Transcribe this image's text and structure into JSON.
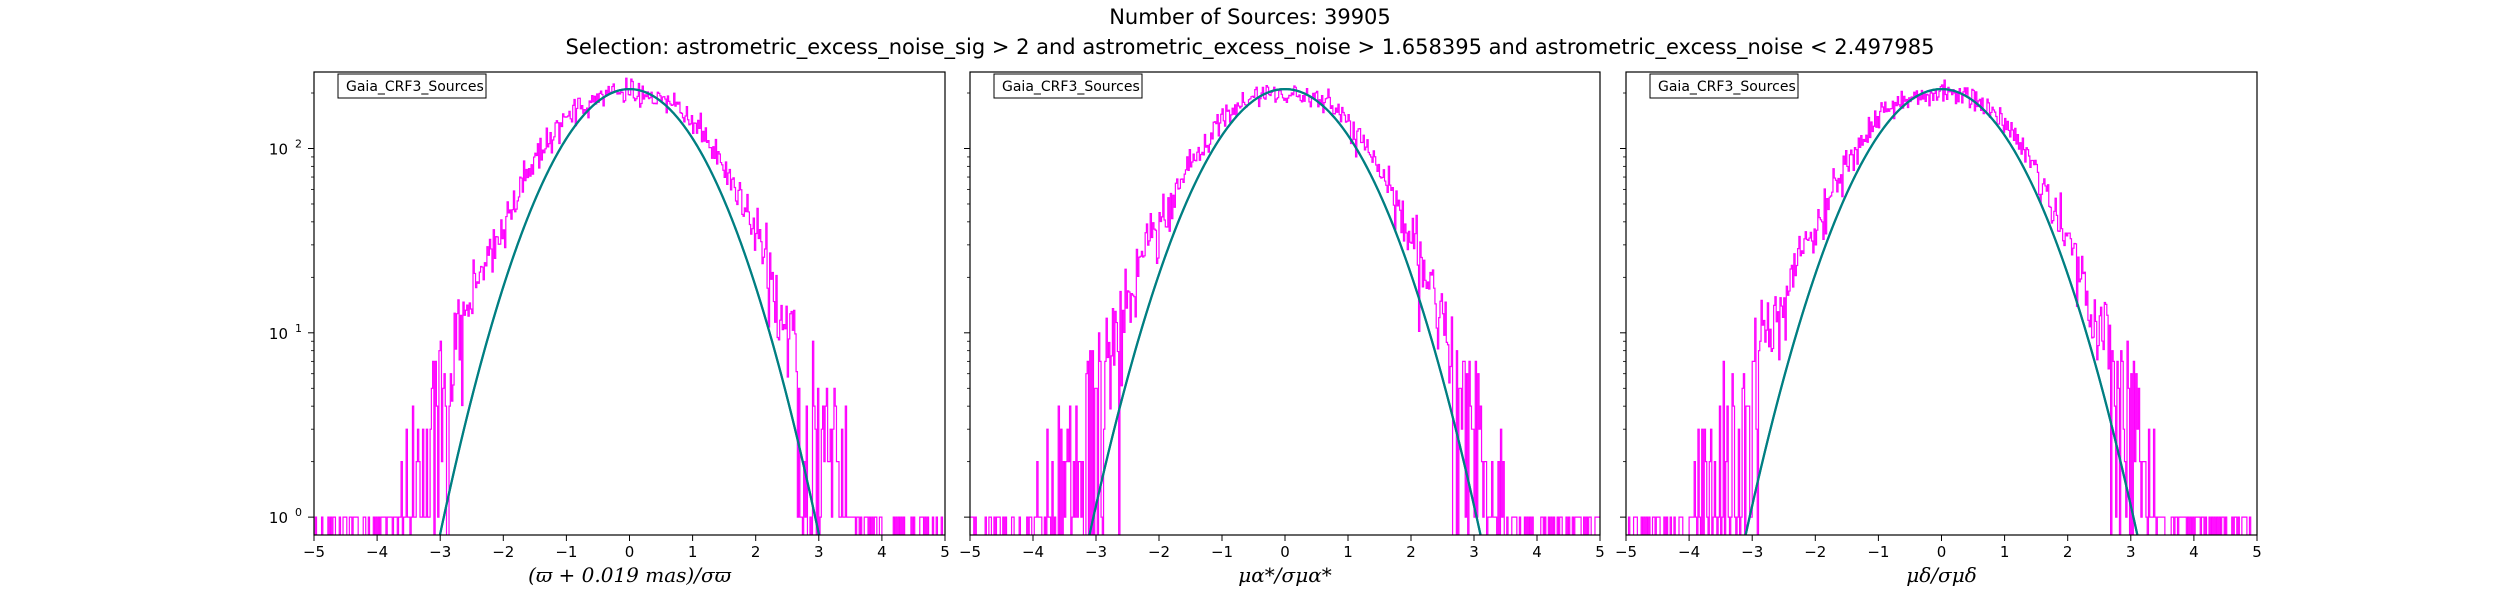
{
  "figure": {
    "title_line1": "Number of Sources: 39905",
    "title_line2": "Selection: astrometric_excess_noise_sig > 2 and astrometric_excess_noise > 1.658395 and astrometric_excess_noise < 2.497985"
  },
  "colors": {
    "histogram": "#ff00ff",
    "fit_curve_1": "#1f77b4",
    "fit_curve_2": "#008080",
    "axes": "#000000"
  },
  "chart_data": [
    {
      "type": "line",
      "title": "",
      "legend": "Gaia_CRF3_Sources",
      "legend_placement": "top-left",
      "xlabel": "(ϖ + 0.019 mas)/σϖ",
      "ylabel": "",
      "xlim": [
        -5,
        5
      ],
      "ylim": [
        0.8,
        260
      ],
      "yscale": "log",
      "grid": false,
      "x_tick_labels": [
        "−5",
        "−4",
        "−3",
        "−2",
        "−1",
        "0",
        "1",
        "2",
        "3",
        "4",
        "5"
      ],
      "y_tick_labels": [
        {
          "value": 1,
          "base": "10",
          "exp": "0"
        },
        {
          "value": 10,
          "base": "10",
          "exp": "1"
        },
        {
          "value": 100,
          "base": "10",
          "exp": "2"
        }
      ],
      "series": [
        {
          "kind": "histogram",
          "bin_width": 0.02,
          "x": [
            -5,
            -4.5,
            -4,
            -3.75,
            -3.5,
            -3.25,
            -3,
            -2.75,
            -2.5,
            -2.25,
            -2,
            -1.75,
            -1.5,
            -1.25,
            -1,
            -0.75,
            -0.5,
            -0.25,
            0,
            0.25,
            0.5,
            0.75,
            1,
            1.25,
            1.5,
            1.75,
            2,
            2.25,
            2.5,
            2.75,
            3,
            3.25,
            3.5,
            3.75,
            4,
            4.5,
            5
          ],
          "values": [
            1,
            1,
            1,
            1,
            2,
            2,
            5,
            9,
            16,
            25,
            38,
            56,
            82,
            112,
            145,
            172,
            190,
            200,
            205,
            198,
            188,
            168,
            140,
            108,
            78,
            52,
            34,
            20,
            11,
            6,
            3,
            2,
            1,
            1,
            1,
            1,
            1
          ]
        },
        {
          "kind": "gaussian_fit",
          "amplitude": 210,
          "mean": 0,
          "sigma": 0.9,
          "x_range": [
            -3.6,
            3.6
          ]
        }
      ]
    },
    {
      "type": "line",
      "title": "",
      "legend": "Gaia_CRF3_Sources",
      "legend_placement": "top-left",
      "xlabel": "μα*/σμα*",
      "ylabel": "",
      "xlim": [
        -5,
        5
      ],
      "ylim": [
        0.8,
        260
      ],
      "yscale": "log",
      "grid": false,
      "x_tick_labels": [
        "−5",
        "−4",
        "−3",
        "−2",
        "−1",
        "0",
        "1",
        "2",
        "3",
        "4",
        "5"
      ],
      "y_tick_labels": [],
      "series": [
        {
          "kind": "histogram",
          "bin_width": 0.02,
          "x": [
            -4.8,
            -4.5,
            -4,
            -3.75,
            -3.5,
            -3.25,
            -3,
            -2.75,
            -2.5,
            -2.25,
            -2,
            -1.75,
            -1.5,
            -1.25,
            -1,
            -0.75,
            -0.5,
            -0.25,
            0,
            0.25,
            0.5,
            0.75,
            1,
            1.25,
            1.5,
            1.75,
            2,
            2.25,
            2.5,
            2.75,
            3,
            3.25,
            3.5,
            3.75,
            4,
            4.5,
            4.8
          ],
          "values": [
            1,
            1,
            1,
            2,
            2,
            3,
            5,
            9,
            15,
            24,
            36,
            54,
            80,
            110,
            142,
            170,
            188,
            198,
            200,
            196,
            186,
            166,
            138,
            106,
            76,
            50,
            32,
            19,
            11,
            6,
            4,
            2,
            1,
            1,
            1,
            1,
            1
          ]
        },
        {
          "kind": "gaussian_fit",
          "amplitude": 210,
          "mean": 0,
          "sigma": 0.93,
          "x_range": [
            -3.7,
            3.7
          ]
        }
      ]
    },
    {
      "type": "line",
      "title": "",
      "legend": "Gaia_CRF3_Sources",
      "legend_placement": "top-left",
      "xlabel": "μδ/σμδ",
      "ylabel": "",
      "xlim": [
        -5,
        5
      ],
      "ylim": [
        0.8,
        260
      ],
      "yscale": "log",
      "grid": false,
      "x_tick_labels": [
        "−5",
        "−4",
        "−3",
        "−2",
        "−1",
        "0",
        "1",
        "2",
        "3",
        "4",
        "5"
      ],
      "y_tick_labels": [],
      "series": [
        {
          "kind": "histogram",
          "bin_width": 0.02,
          "x": [
            -4.8,
            -4.5,
            -4,
            -3.75,
            -3.5,
            -3.25,
            -3,
            -2.75,
            -2.5,
            -2.25,
            -2,
            -1.75,
            -1.5,
            -1.25,
            -1,
            -0.75,
            -0.5,
            -0.25,
            0,
            0.25,
            0.5,
            0.75,
            1,
            1.25,
            1.5,
            1.75,
            2,
            2.25,
            2.5,
            2.75,
            3,
            3.25,
            3.5,
            3.75,
            4,
            4.5,
            4.8
          ],
          "values": [
            1,
            1,
            1,
            2,
            2,
            3,
            5,
            9,
            15,
            24,
            36,
            54,
            80,
            110,
            142,
            170,
            188,
            198,
            200,
            196,
            186,
            166,
            138,
            106,
            76,
            50,
            32,
            19,
            11,
            6,
            4,
            2,
            1,
            1,
            1,
            1,
            1
          ]
        },
        {
          "kind": "gaussian_fit",
          "amplitude": 210,
          "mean": 0,
          "sigma": 0.93,
          "x_range": [
            -3.7,
            3.7
          ]
        }
      ]
    }
  ]
}
